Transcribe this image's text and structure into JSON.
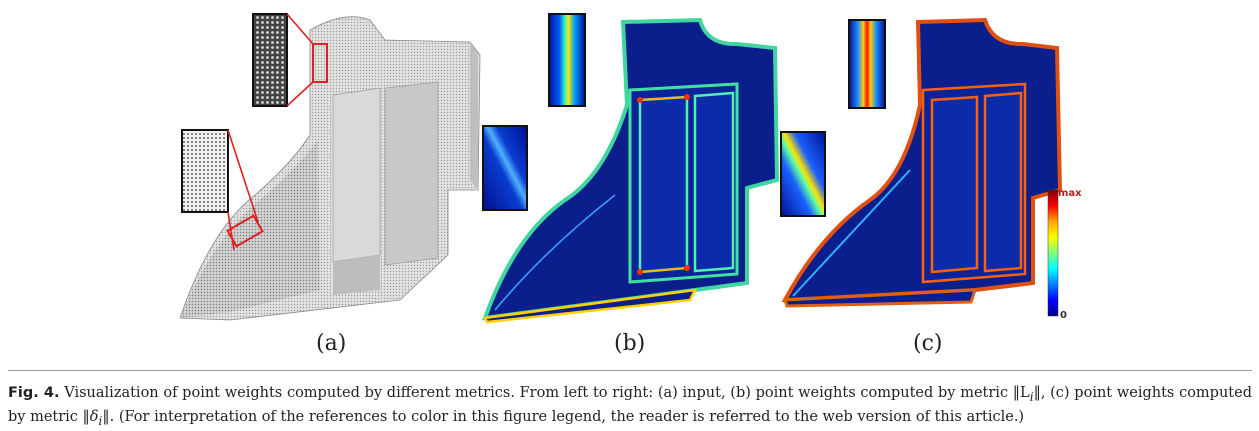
{
  "figure": {
    "panels": [
      {
        "label": "(a)",
        "scheme": "grayscale"
      },
      {
        "label": "(b)",
        "scheme": "jet"
      },
      {
        "label": "(c)",
        "scheme": "jet"
      }
    ],
    "colorbar": {
      "max_label": "max",
      "min_label": "0",
      "colors": [
        "#7f0000",
        "#ff0000",
        "#ffa500",
        "#ffff00",
        "#7fff7f",
        "#00ffff",
        "#0080ff",
        "#0000ff",
        "#00008f"
      ]
    },
    "zoom_box_color": "#e02020",
    "background_blue": "#0a1e8c"
  },
  "caption": {
    "fig_label": "Fig. 4.",
    "part1": "Visualization of point weights computed by different metrics. From left to right: (a) input, (b) point weights computed by metric ",
    "metric_b": "‖L",
    "metric_b_sub": "i",
    "metric_b_end": "‖",
    "part2": ", (c) point weights computed by metric ",
    "metric_c": "‖δ",
    "metric_c_sub": "i",
    "metric_c_end": "‖",
    "part3": ".  (For interpretation of the references to color in this figure legend, the reader is referred to the web version of this article.)"
  }
}
